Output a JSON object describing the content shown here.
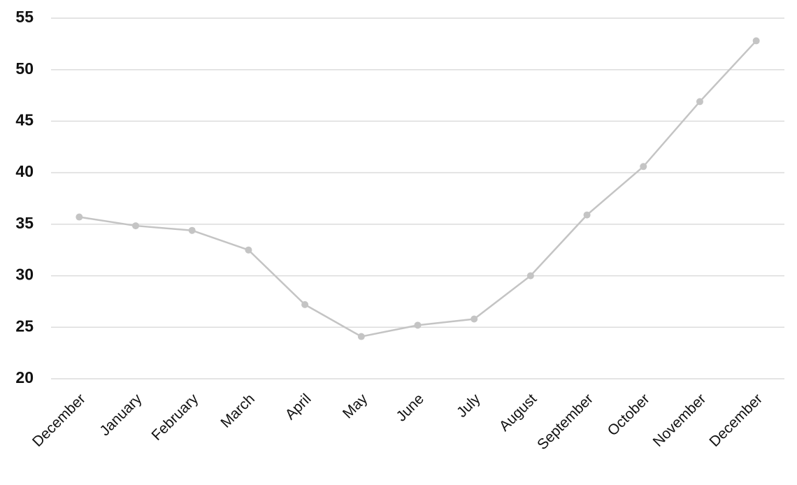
{
  "chart_data": {
    "type": "line",
    "categories": [
      "December",
      "January",
      "February",
      "March",
      "April",
      "May",
      "June",
      "July",
      "August",
      "September",
      "October",
      "November",
      "December"
    ],
    "series": [
      {
        "color": "#c4c4c4",
        "values": [
          35.7,
          34.85,
          34.4,
          32.5,
          27.2,
          24.1,
          25.2,
          25.8,
          30.0,
          35.9,
          40.6,
          46.9,
          52.8
        ]
      }
    ],
    "ylim": [
      20,
      55
    ],
    "yticks": [
      20,
      25,
      30,
      35,
      40,
      45,
      50,
      55
    ],
    "grid": true
  }
}
